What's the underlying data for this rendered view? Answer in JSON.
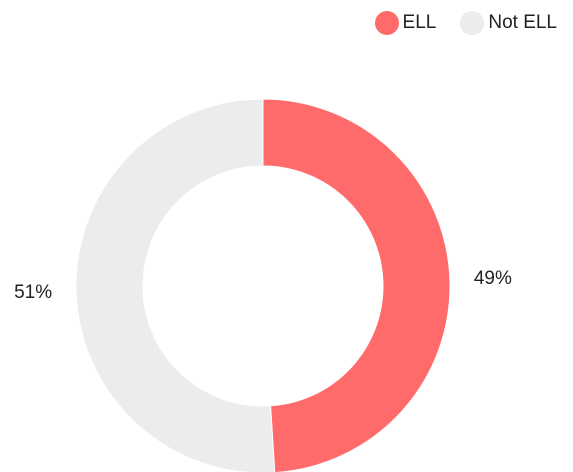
{
  "chart_data": {
    "type": "pie",
    "variant": "donut",
    "legend_position": "top-right",
    "slices": [
      {
        "name": "ELL",
        "value": 49,
        "label": "49%",
        "color": "#ff6b6b"
      },
      {
        "name": "Not ELL",
        "value": 51,
        "label": "51%",
        "color": "#ececec"
      }
    ]
  }
}
